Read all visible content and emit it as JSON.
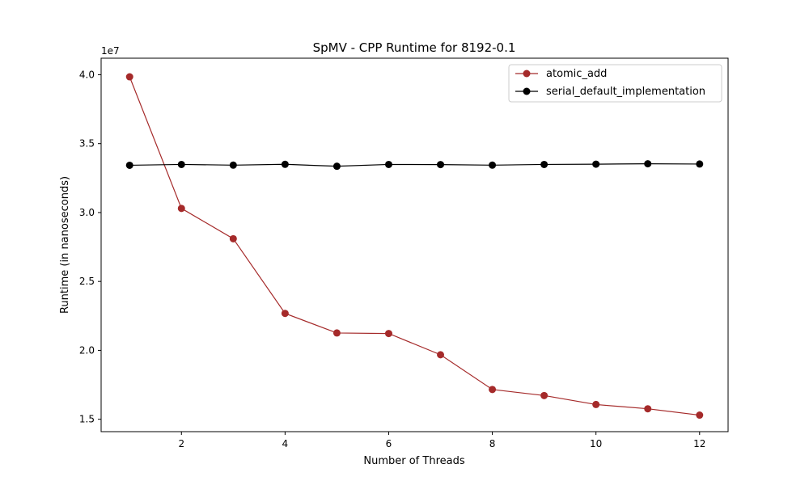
{
  "chart_data": {
    "type": "line",
    "title": "SpMV - CPP Runtime for 8192-0.1",
    "xlabel": "Number of Threads",
    "ylabel": "Runtime (in nanoseconds)",
    "y_offset_label": "1e7",
    "xlim": [
      0.45,
      12.55
    ],
    "ylim": [
      1.41,
      4.12
    ],
    "x_ticks": [
      2,
      4,
      6,
      8,
      10,
      12
    ],
    "x_tick_labels": [
      "2",
      "4",
      "6",
      "8",
      "10",
      "12"
    ],
    "y_ticks": [
      1.5,
      2.0,
      2.5,
      3.0,
      3.5,
      4.0
    ],
    "y_tick_labels": [
      "1.5",
      "2.0",
      "2.5",
      "3.0",
      "3.5",
      "4.0"
    ],
    "y_unit_scale": 10000000,
    "grid": false,
    "legend_position": "top-right",
    "x": [
      1,
      2,
      3,
      4,
      5,
      6,
      7,
      8,
      9,
      10,
      11,
      12
    ],
    "series": [
      {
        "name": "atomic_add",
        "color": "#a52a2a",
        "marker": "circle",
        "values": [
          3.985,
          3.03,
          2.81,
          2.268,
          2.126,
          2.122,
          1.968,
          1.716,
          1.672,
          1.607,
          1.576,
          1.53
        ]
      },
      {
        "name": "serial_default_implementation",
        "color": "#000000",
        "marker": "circle",
        "values": [
          3.343,
          3.349,
          3.344,
          3.35,
          3.336,
          3.349,
          3.348,
          3.344,
          3.349,
          3.351,
          3.354,
          3.352
        ]
      }
    ]
  }
}
